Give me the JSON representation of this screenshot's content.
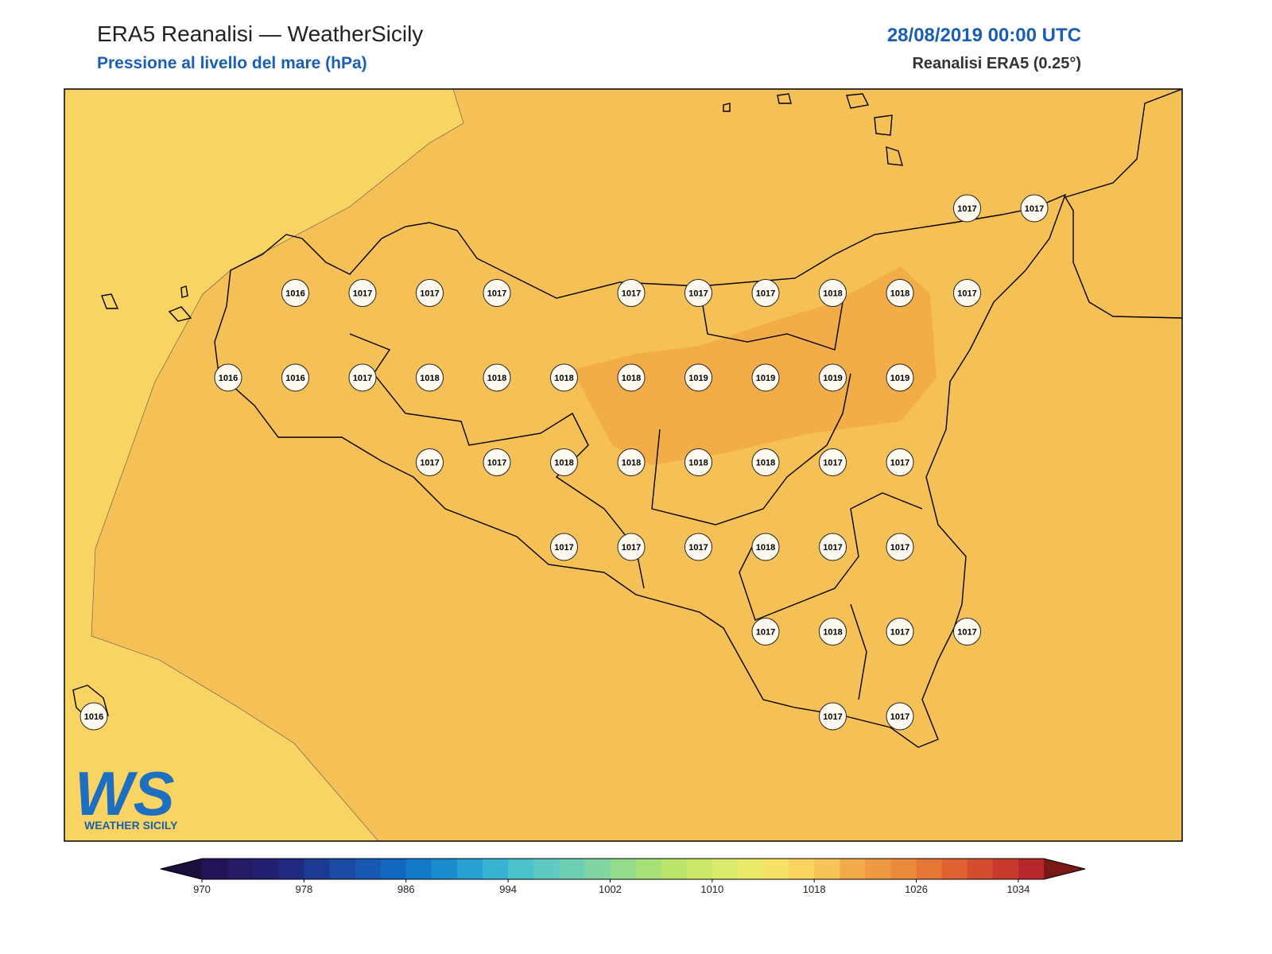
{
  "header": {
    "title": "ERA5 Reanalisi — WeatherSicily",
    "subtitle": "Pressione al livello del mare (hPa)",
    "date": "28/08/2019 00:00 UTC",
    "source": "Reanalisi ERA5 (0.25°)"
  },
  "map": {
    "type": "map",
    "pressure_grid": [
      [
        null,
        null,
        null,
        null,
        null,
        null,
        null,
        null,
        null,
        null,
        null,
        null,
        null,
        1017,
        1017
      ],
      [
        null,
        null,
        null,
        1016,
        1017,
        1017,
        1017,
        null,
        1017,
        1017,
        1017,
        1018,
        1018,
        1017,
        null
      ],
      [
        null,
        null,
        1016,
        1016,
        1017,
        1018,
        1018,
        1018,
        1018,
        1019,
        1019,
        1019,
        1019,
        null,
        null
      ],
      [
        null,
        null,
        null,
        null,
        null,
        1017,
        1017,
        1018,
        1018,
        1018,
        1018,
        1017,
        1017,
        null,
        null
      ],
      [
        null,
        null,
        null,
        null,
        null,
        null,
        null,
        1017,
        1017,
        1017,
        1018,
        1017,
        1017,
        null,
        null
      ],
      [
        null,
        null,
        null,
        null,
        null,
        null,
        null,
        null,
        null,
        null,
        1017,
        1018,
        1017,
        1017,
        null
      ],
      [
        1016,
        null,
        null,
        null,
        null,
        null,
        null,
        null,
        null,
        null,
        null,
        1017,
        1017,
        null,
        null
      ]
    ]
  },
  "colorbar": {
    "lim": [
      970,
      1036
    ],
    "ticks": [
      970,
      978,
      986,
      994,
      1002,
      1010,
      1018,
      1026,
      1034
    ],
    "under_color": "#1a0f3d",
    "over_color": "#7a1818",
    "colors": [
      "#231458",
      "#251a66",
      "#221f72",
      "#1f2a80",
      "#1c3a92",
      "#1a4aa3",
      "#1658b3",
      "#1268c0",
      "#127ac9",
      "#1a8ccf",
      "#28a0d2",
      "#38b4d2",
      "#4cc2cc",
      "#5ecac2",
      "#6ed0b2",
      "#80d6a0",
      "#92dc8c",
      "#a6e078",
      "#bae46a",
      "#cce868",
      "#dcea6e",
      "#ece96a",
      "#f8e266",
      "#fbd35f",
      "#f7c457",
      "#f2ab48",
      "#ef9a42",
      "#ec8a3c",
      "#e67636",
      "#df6230",
      "#d44e2e",
      "#c83a2c",
      "#b8282a"
    ]
  },
  "logo": {
    "mark": "WS",
    "text": "WEATHER SICILY"
  }
}
